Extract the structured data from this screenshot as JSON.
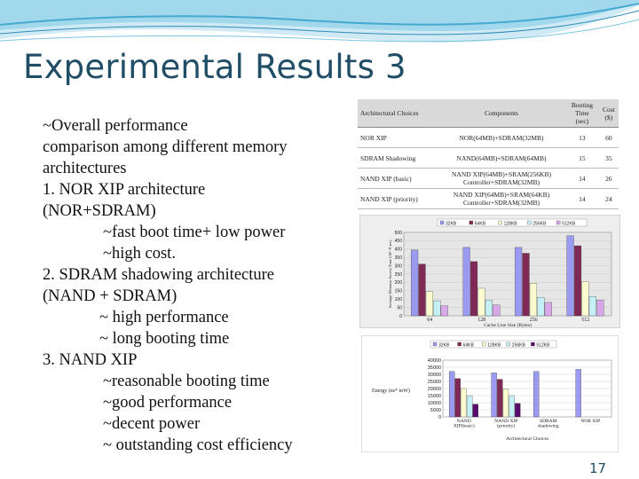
{
  "slide": {
    "title": "Experimental Results 3",
    "page_number": "17",
    "lines": [
      {
        "text": "~Overall performance",
        "indent": 0
      },
      {
        "text": "comparison among different memory",
        "indent": 0
      },
      {
        "text": "architectures",
        "indent": 0
      },
      {
        "text": "1. NOR XIP architecture",
        "indent": 0
      },
      {
        "text": "(NOR+SDRAM)",
        "indent": 0
      },
      {
        "text": "~fast boot time+ low power",
        "indent": 1
      },
      {
        "text": "~high cost.",
        "indent": 1
      },
      {
        "text": "2. SDRAM shadowing architecture",
        "indent": 0
      },
      {
        "text": "(NAND + SDRAM)",
        "indent": 0
      },
      {
        "text": "~ high performance",
        "indent": 2
      },
      {
        "text": "~ long booting time",
        "indent": 2
      },
      {
        "text": "3. NAND XIP",
        "indent": 0
      },
      {
        "text": "~reasonable booting time",
        "indent": 1
      },
      {
        "text": "~good performance",
        "indent": 1
      },
      {
        "text": "~decent power",
        "indent": 1
      },
      {
        "text": "~ outstanding cost efficiency",
        "indent": 1
      }
    ]
  },
  "table": {
    "headers": [
      "Architectural Choices",
      "Components",
      "Booting Time (sec)",
      "Cost ($)"
    ],
    "rows": [
      [
        "NOR XIP",
        "NOR(64MB)+SDRAM(32MB)",
        "13",
        "60"
      ],
      [
        "SDRAM Shadowing",
        "NAND(64MB)+SDRAM(64MB)",
        "15",
        "35"
      ],
      [
        "NAND XIP (basic)",
        "NAND XIP(64MB)+SRAM(256KB) Controller+SDRAM(32MB)",
        "14",
        "26"
      ],
      [
        "NAND XIP (priority)",
        "NAND XIP(64MB)+SRAM(64KB) Controller+SDRAM(32MB)",
        "14",
        "24"
      ]
    ]
  },
  "chart_data": [
    {
      "type": "bar",
      "legend_position": "top",
      "colors": [
        "#9a9af0",
        "#7f2a56",
        "#fbfbcf",
        "#c5f0f5",
        "#d8a8e8"
      ],
      "ylabel": "Average Memory Access Time (10^-9 sec)",
      "xlabel": "Cache Line Size (Bytes)",
      "ylim": [
        0,
        500
      ],
      "yticks": [
        "0",
        "50",
        "100",
        "150",
        "200",
        "250",
        "300",
        "350",
        "400",
        "450",
        "500"
      ],
      "categories": [
        "64",
        "128",
        "256",
        "512"
      ],
      "series": [
        {
          "name": "32KB",
          "values": [
            395,
            410,
            410,
            480
          ]
        },
        {
          "name": "64KB",
          "values": [
            310,
            325,
            375,
            420
          ]
        },
        {
          "name": "128KB",
          "values": [
            145,
            165,
            195,
            205
          ]
        },
        {
          "name": "256KB",
          "values": [
            90,
            95,
            110,
            115
          ]
        },
        {
          "name": "512KB",
          "values": [
            60,
            65,
            80,
            95
          ]
        }
      ]
    },
    {
      "type": "bar",
      "legend_position": "top",
      "colors": [
        "#9a9af0",
        "#7f2a56",
        "#fbfbcf",
        "#c5f0f5",
        "#5a0a6a"
      ],
      "ylabel": "Energy (ns* mW)",
      "xlabel": "Architectural Choices",
      "ylim": [
        0,
        40000
      ],
      "yticks": [
        "0",
        "5000",
        "10000",
        "15000",
        "20000",
        "25000",
        "30000",
        "35000",
        "40000"
      ],
      "categories": [
        "NAND XIP(basic)",
        "NAND XIP (priority)",
        "SDRAM shadowing",
        "NOR XIP"
      ],
      "series": [
        {
          "name": "32KB",
          "values": [
            32000,
            31000,
            32000,
            33500
          ]
        },
        {
          "name": "64KB",
          "values": [
            27000,
            26500,
            0,
            0
          ]
        },
        {
          "name": "128KB",
          "values": [
            20000,
            19500,
            0,
            0
          ]
        },
        {
          "name": "256KB",
          "values": [
            15000,
            15000,
            0,
            0
          ]
        },
        {
          "name": "512KB",
          "values": [
            9000,
            9500,
            0,
            0
          ]
        }
      ]
    }
  ]
}
